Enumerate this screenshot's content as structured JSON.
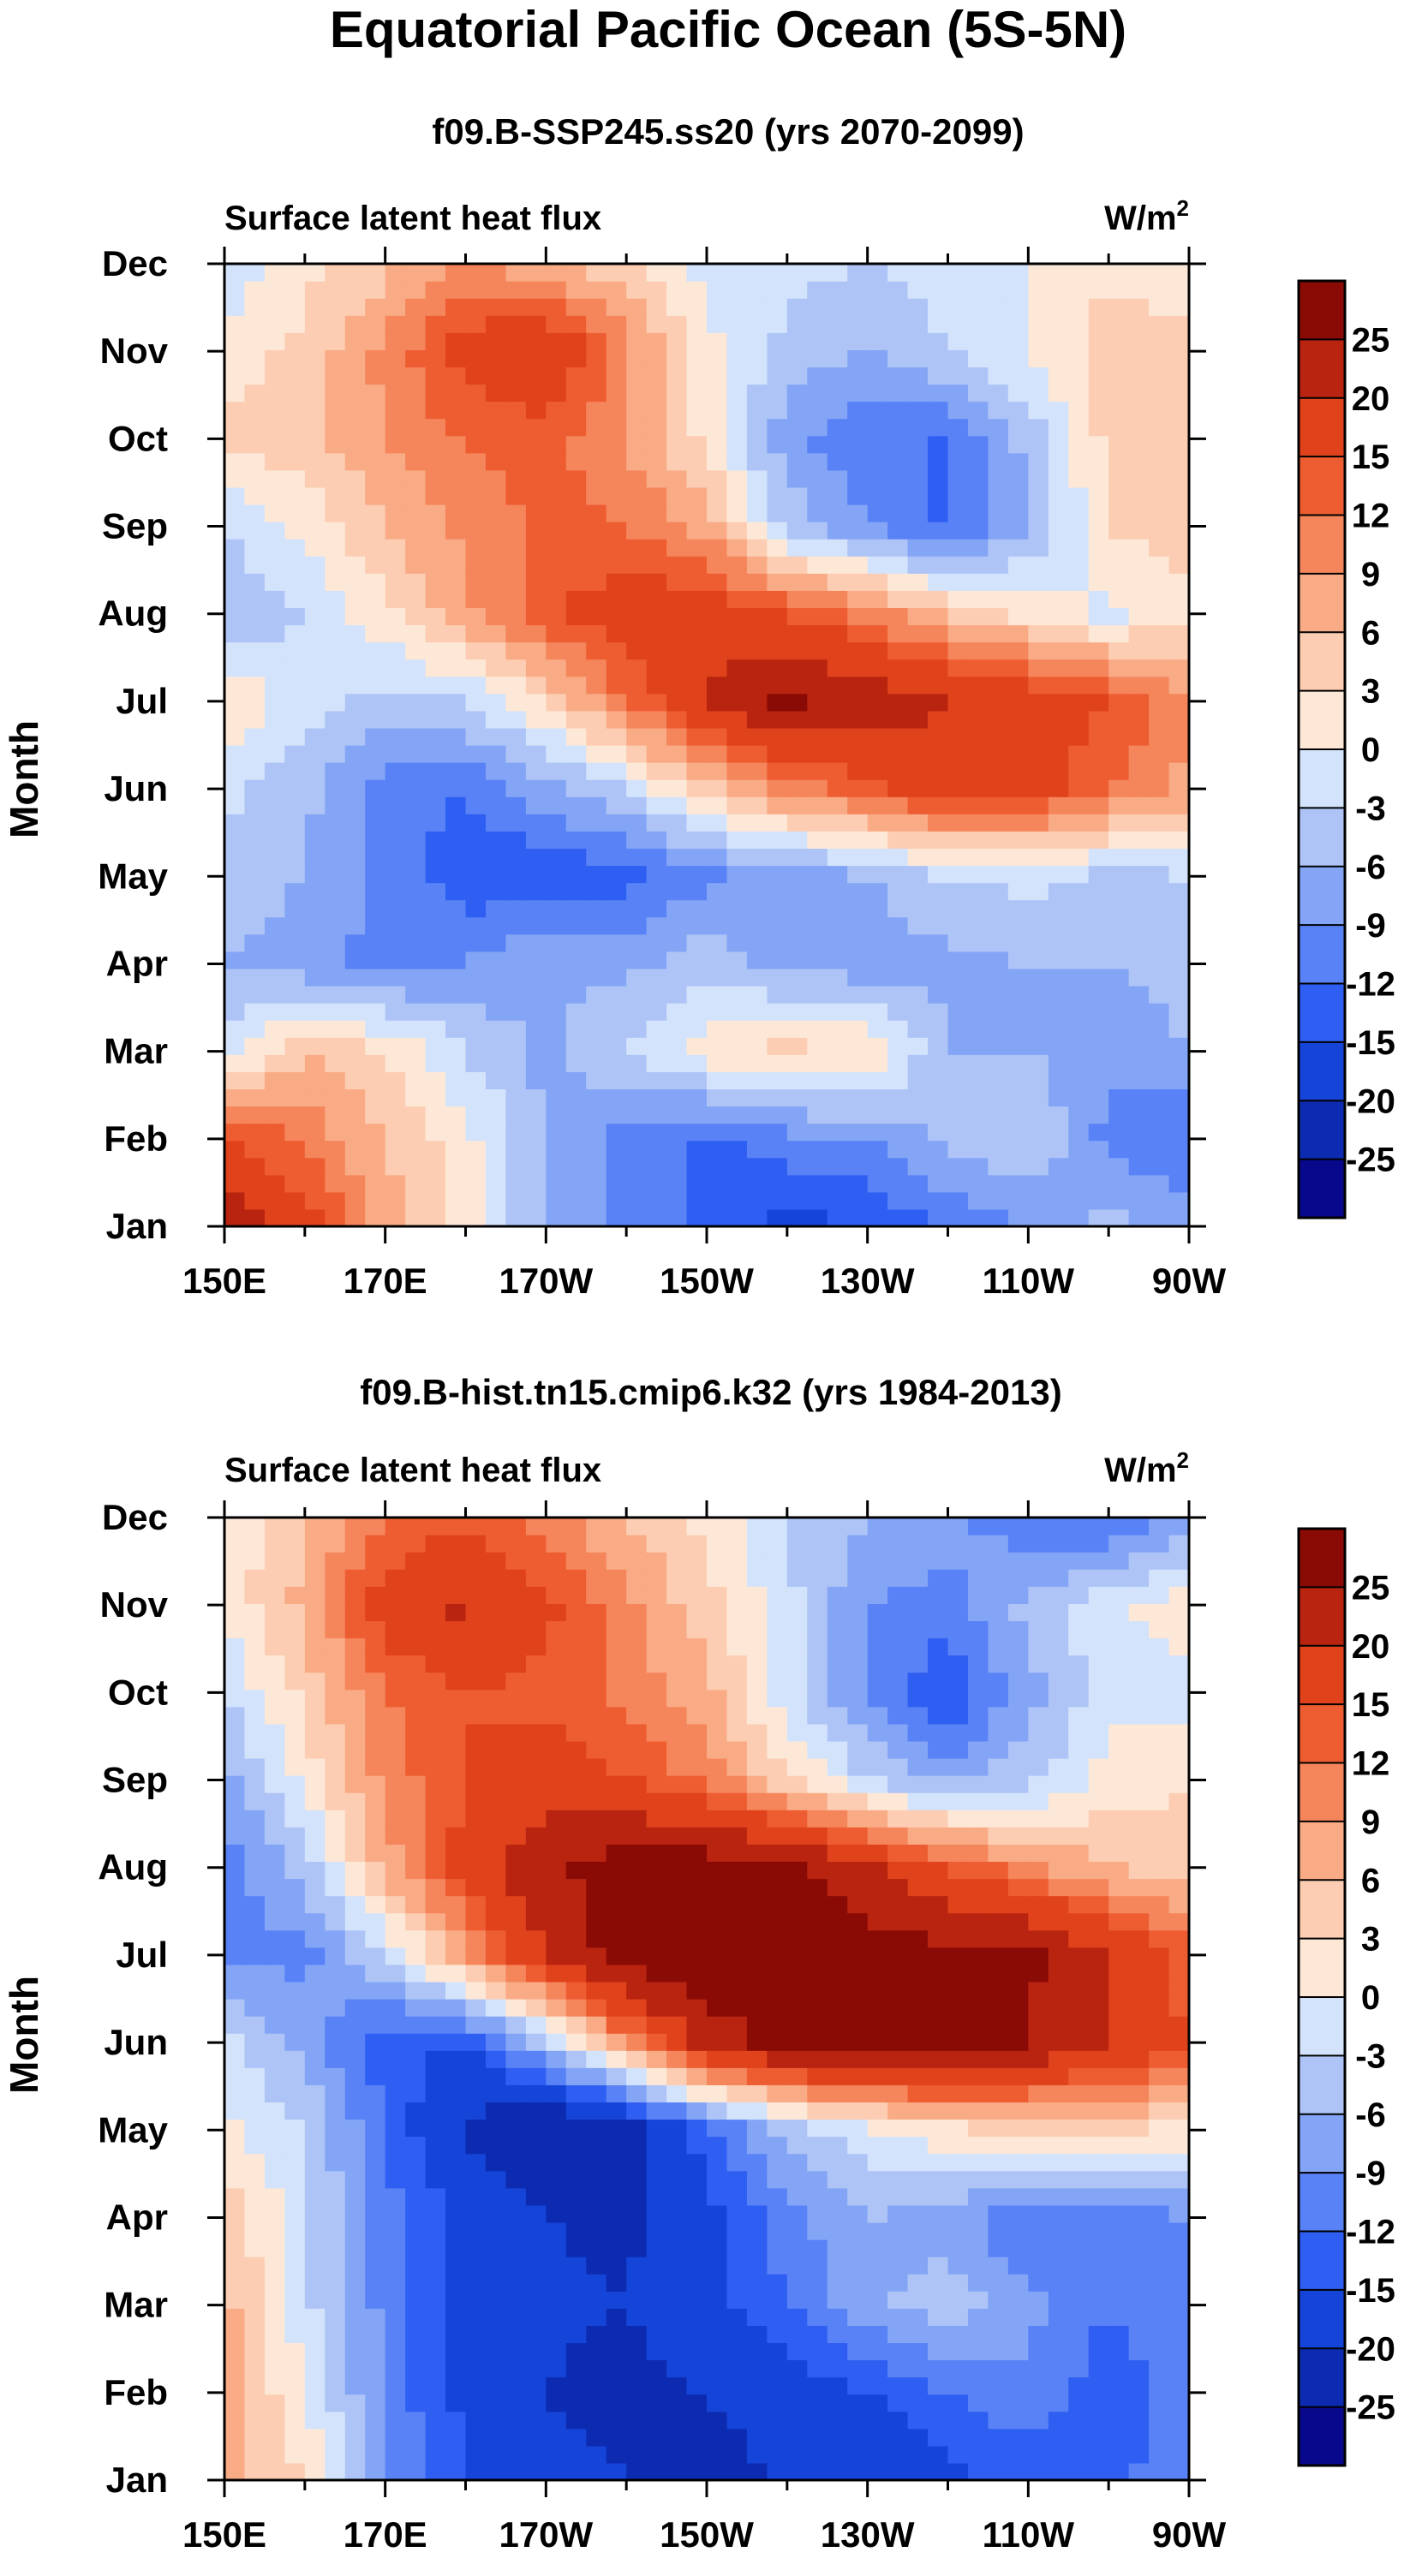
{
  "figure": {
    "title": "Equatorial Pacific Ocean (5S-5N)"
  },
  "chart_data": [
    {
      "type": "heatmap",
      "title": "f09.B-SSP245.ss20 (yrs 2070-2099)",
      "left_label": "Surface latent heat flux",
      "units_base": "W/m",
      "units_exp": "2",
      "ylabel": "Month",
      "x_ticks": [
        "150E",
        "170E",
        "170W",
        "150W",
        "130W",
        "110W",
        "90W"
      ],
      "y_ticks": [
        "Jan",
        "Feb",
        "Mar",
        "Apr",
        "May",
        "Jun",
        "Jul",
        "Aug",
        "Sep",
        "Oct",
        "Nov",
        "Dec"
      ],
      "grid_x": [
        150,
        160,
        170,
        180,
        190,
        200,
        210,
        220,
        230,
        240,
        250,
        260,
        270
      ],
      "values": [
        [
          24,
          17,
          8,
          2,
          -7,
          -10,
          -13,
          -16,
          -15,
          -12,
          -9,
          -5,
          -7
        ],
        [
          16,
          11,
          6,
          1,
          -6,
          -10,
          -13,
          -10,
          -9,
          -5,
          -3,
          -10,
          -12
        ],
        [
          -2,
          6,
          3,
          -3,
          -7,
          -3,
          2,
          4,
          3,
          -6,
          -6,
          -8,
          -6
        ],
        [
          -6,
          -8,
          -10,
          -9,
          -6,
          -7,
          -4,
          -7,
          -8,
          -7,
          -6,
          -6,
          -5
        ],
        [
          -4,
          -6,
          -10,
          -14,
          -15,
          -13,
          -10,
          -8,
          -6,
          -3,
          -2,
          -4,
          -3
        ],
        [
          -2,
          -5,
          -11,
          -12,
          -7,
          -3,
          5,
          10,
          14,
          18,
          17,
          12,
          8
        ],
        [
          3,
          -2,
          -4,
          -3,
          3,
          12,
          20,
          26,
          23,
          20,
          18,
          15,
          10
        ],
        [
          -6,
          -3,
          2,
          8,
          14,
          18,
          18,
          15,
          11,
          6,
          2,
          -1,
          2
        ],
        [
          -3,
          1,
          6,
          10,
          13,
          12,
          8,
          -4,
          -9,
          -13,
          -6,
          3,
          5
        ],
        [
          4,
          5,
          9,
          12,
          13,
          9,
          2,
          -8,
          -12,
          -12,
          -5,
          4,
          5
        ],
        [
          1,
          4,
          10,
          17,
          20,
          10,
          1,
          -4,
          -6,
          -3,
          0,
          5,
          4
        ],
        [
          -2,
          2,
          5,
          9,
          7,
          4,
          -1,
          -2,
          -3,
          -2,
          0,
          2,
          1
        ]
      ]
    },
    {
      "type": "heatmap",
      "title": "f09.B-hist.tn15.cmip6.k32 (yrs 1984-2013)",
      "left_label": "Surface latent heat flux",
      "units_base": "W/m",
      "units_exp": "2",
      "ylabel": "Month",
      "x_ticks": [
        "150E",
        "170E",
        "170W",
        "150W",
        "130W",
        "110W",
        "90W"
      ],
      "y_ticks": [
        "Jan",
        "Feb",
        "Mar",
        "Apr",
        "May",
        "Jun",
        "Jul",
        "Aug",
        "Sep",
        "Oct",
        "Nov",
        "Dec"
      ],
      "grid_x": [
        150,
        160,
        170,
        180,
        190,
        200,
        210,
        220,
        230,
        240,
        250,
        260,
        270
      ],
      "values": [
        [
          7,
          3,
          -8,
          -15,
          -18,
          -20,
          -22,
          -20,
          -19,
          -16,
          -14,
          -13,
          -10
        ],
        [
          8,
          0,
          -10,
          -16,
          -20,
          -22,
          -20,
          -17,
          -15,
          -12,
          -10,
          -14,
          -10
        ],
        [
          7,
          -2,
          -10,
          -16,
          -19,
          -20,
          -16,
          -12,
          -7,
          -4,
          -8,
          -12,
          -10
        ],
        [
          5,
          -2,
          -11,
          -16,
          -20,
          -21,
          -16,
          -10,
          -6,
          -8,
          -12,
          -11,
          -9
        ],
        [
          1,
          -3,
          -12,
          -21,
          -26,
          -23,
          -13,
          -5,
          -1,
          2,
          3,
          3,
          2
        ],
        [
          -2,
          -7,
          -14,
          -15,
          -4,
          10,
          22,
          27,
          28,
          28,
          25,
          20,
          15
        ],
        [
          -9,
          -10,
          -3,
          8,
          20,
          28,
          29,
          29,
          28,
          27,
          26,
          21,
          13
        ],
        [
          -11,
          -5,
          7,
          17,
          24,
          28,
          28,
          26,
          21,
          15,
          10,
          6,
          4
        ],
        [
          -7,
          1,
          10,
          15,
          17,
          15,
          11,
          4,
          -3,
          -7,
          -4,
          1,
          3
        ],
        [
          -3,
          4,
          12,
          15,
          14,
          11,
          7,
          -2,
          -10,
          -15,
          -7,
          -1,
          -1
        ],
        [
          1,
          7,
          17,
          21,
          16,
          10,
          4,
          -2,
          -9,
          -10,
          -5,
          -1,
          2
        ],
        [
          1,
          5,
          12,
          14,
          10,
          6,
          2,
          -3,
          -6,
          -8,
          -11,
          -13,
          -8
        ]
      ]
    }
  ],
  "colorbar": {
    "labels": [
      "25",
      "20",
      "15",
      "12",
      "9",
      "6",
      "3",
      "0",
      "-3",
      "-6",
      "-9",
      "-12",
      "-15",
      "-20",
      "-25"
    ],
    "levels": [
      -25,
      -20,
      -15,
      -12,
      -9,
      -6,
      -3,
      0,
      3,
      6,
      9,
      12,
      15,
      20,
      25
    ],
    "colors": [
      "#08088c",
      "#0d2bb0",
      "#1544d8",
      "#2f5ef2",
      "#5882f6",
      "#84a5f5",
      "#aec4f7",
      "#d3e3fb",
      "#fde8d8",
      "#fccdb3",
      "#f9ab85",
      "#f5855b",
      "#ee5d32",
      "#e0421c",
      "#b8240f",
      "#8a0a06"
    ]
  }
}
